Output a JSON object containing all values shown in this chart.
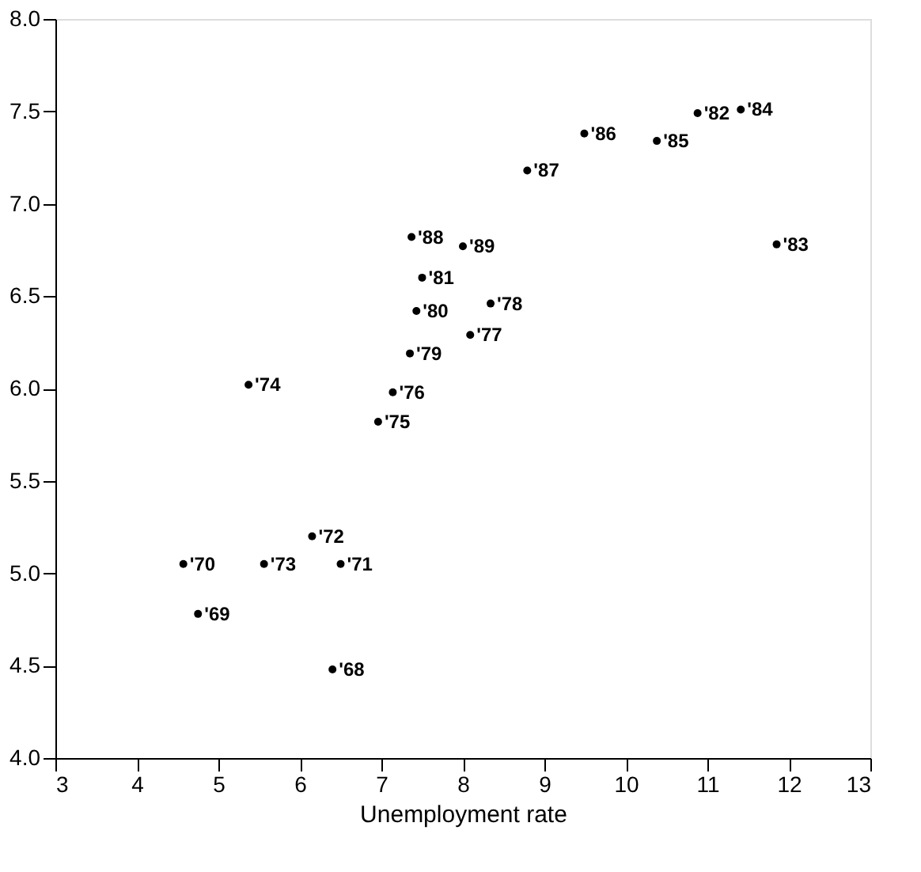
{
  "chart_data": {
    "type": "scatter",
    "xlabel": "Unemployment rate",
    "x": [
      4.57,
      4.75,
      5.56,
      6.15,
      6.5,
      6.4,
      5.37,
      7.14,
      6.96,
      7.35,
      8.09,
      7.43,
      8.34,
      7.5,
      7.37,
      8.0,
      8.79,
      9.49,
      10.38,
      10.88,
      11.41,
      11.85
    ],
    "values": [
      5.05,
      4.78,
      5.05,
      5.2,
      5.05,
      4.48,
      6.02,
      5.98,
      5.82,
      6.19,
      6.29,
      6.42,
      6.46,
      6.6,
      6.82,
      6.77,
      7.18,
      7.38,
      7.34,
      7.49,
      7.51,
      6.78
    ],
    "annotations": [
      {
        "text": "'70",
        "x": 4.57,
        "y": 5.05
      },
      {
        "text": "'69",
        "x": 4.75,
        "y": 4.78
      },
      {
        "text": "'73",
        "x": 5.56,
        "y": 5.05
      },
      {
        "text": "'72",
        "x": 6.15,
        "y": 5.2
      },
      {
        "text": "'71",
        "x": 6.5,
        "y": 5.05
      },
      {
        "text": "'68",
        "x": 6.4,
        "y": 4.48
      },
      {
        "text": "'74",
        "x": 5.37,
        "y": 6.02
      },
      {
        "text": "'76",
        "x": 7.14,
        "y": 5.98
      },
      {
        "text": "'75",
        "x": 6.96,
        "y": 5.82
      },
      {
        "text": "'79",
        "x": 7.35,
        "y": 6.19
      },
      {
        "text": "'77",
        "x": 8.09,
        "y": 6.29
      },
      {
        "text": "'80",
        "x": 7.43,
        "y": 6.42
      },
      {
        "text": "'78",
        "x": 8.34,
        "y": 6.46
      },
      {
        "text": "'81",
        "x": 7.5,
        "y": 6.6
      },
      {
        "text": "'88",
        "x": 7.37,
        "y": 6.82
      },
      {
        "text": "'89",
        "x": 8.0,
        "y": 6.77
      },
      {
        "text": "'87",
        "x": 8.79,
        "y": 7.18
      },
      {
        "text": "'86",
        "x": 9.49,
        "y": 7.38
      },
      {
        "text": "'85",
        "x": 10.38,
        "y": 7.34
      },
      {
        "text": "'82",
        "x": 10.88,
        "y": 7.49
      },
      {
        "text": "'84",
        "x": 11.41,
        "y": 7.51
      },
      {
        "text": "'83",
        "x": 11.85,
        "y": 6.78
      }
    ],
    "color": "#000000",
    "marker": "circle",
    "grid": false,
    "xlim": [
      3,
      13
    ],
    "xticks": [
      3,
      4,
      5,
      6,
      7,
      8,
      9,
      10,
      11,
      12,
      13
    ],
    "ylim": [
      4,
      8
    ],
    "yticks": [
      {
        "value": 4,
        "label": "4.0"
      },
      {
        "value": 4.5,
        "label": "4.5"
      },
      {
        "value": 5,
        "label": "5.0"
      },
      {
        "value": 5.5,
        "label": "5.5"
      },
      {
        "value": 6,
        "label": "6.0"
      },
      {
        "value": 6.5,
        "label": "6.5"
      },
      {
        "value": 7,
        "label": "7.0"
      },
      {
        "value": 7.5,
        "label": "7.5"
      },
      {
        "value": 8,
        "label": "8.0"
      }
    ]
  }
}
